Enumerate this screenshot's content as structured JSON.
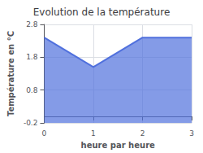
{
  "chart_data": {
    "type": "area",
    "title": "Evolution de la température",
    "xlabel": "heure par heure",
    "ylabel": "Température en °C",
    "x": [
      0,
      1,
      2,
      3
    ],
    "values": [
      2.4,
      1.5,
      2.4,
      2.4
    ],
    "xlim": [
      0,
      3
    ],
    "ylim": [
      -0.2,
      2.8
    ],
    "xticks": [
      0,
      1,
      2,
      3
    ],
    "yticks": [
      -0.2,
      0.8,
      1.8,
      2.8
    ],
    "grid": true
  }
}
